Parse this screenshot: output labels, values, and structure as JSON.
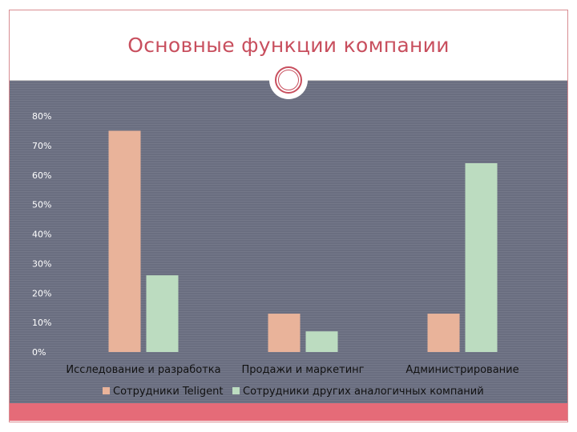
{
  "title": "Основные функции компании",
  "colors": {
    "accent": "#c84f5e",
    "chart_background": "#6a6e80",
    "footer": "#e56b78",
    "series_1": "#e9b39a",
    "series_2": "#bcdcc0"
  },
  "chart_data": {
    "type": "bar",
    "title": "",
    "categories": [
      "Исследование и разработка",
      "Продажи и маркетинг",
      "Администрирование"
    ],
    "series": [
      {
        "name": "Сотрудники Teligent",
        "values": [
          75,
          13,
          13
        ],
        "color": "#e9b39a"
      },
      {
        "name": "Сотрудники других аналогичных компаний",
        "values": [
          26,
          7,
          64
        ],
        "color": "#bcdcc0"
      }
    ],
    "ylim": [
      0,
      80
    ],
    "yticks": [
      "0%",
      "10%",
      "20%",
      "30%",
      "40%",
      "50%",
      "60%",
      "70%",
      "80%"
    ],
    "ytick_values": [
      0,
      10,
      20,
      30,
      40,
      50,
      60,
      70,
      80
    ],
    "unit": "%",
    "grid": false,
    "legend_position": "bottom"
  }
}
